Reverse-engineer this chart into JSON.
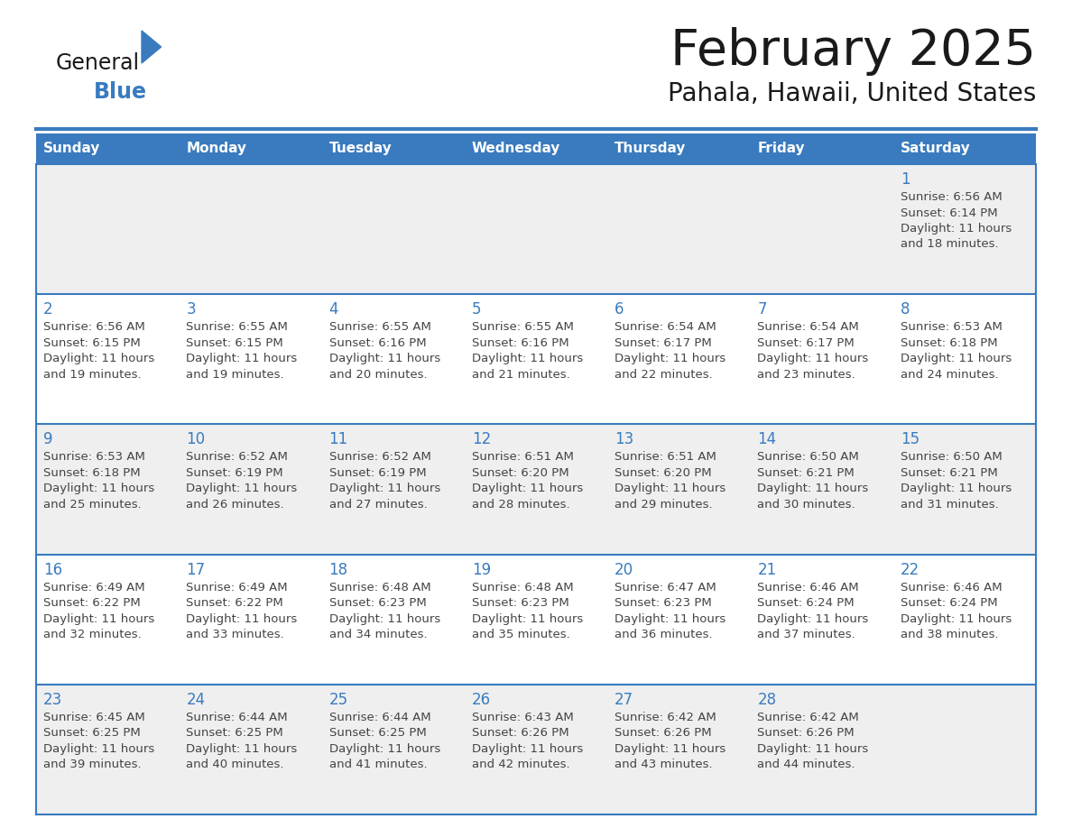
{
  "title": "February 2025",
  "subtitle": "Pahala, Hawaii, United States",
  "header_color": "#3a7bbf",
  "header_text_color": "#ffffff",
  "day_names": [
    "Sunday",
    "Monday",
    "Tuesday",
    "Wednesday",
    "Thursday",
    "Friday",
    "Saturday"
  ],
  "bg_color": "#ffffff",
  "cell_bg_row0": "#efefef",
  "cell_bg_row1": "#ffffff",
  "day_number_color": "#3a7bbf",
  "info_text_color": "#444444",
  "border_color": "#3a7bbf",
  "calendar": [
    [
      null,
      null,
      null,
      null,
      null,
      null,
      1
    ],
    [
      2,
      3,
      4,
      5,
      6,
      7,
      8
    ],
    [
      9,
      10,
      11,
      12,
      13,
      14,
      15
    ],
    [
      16,
      17,
      18,
      19,
      20,
      21,
      22
    ],
    [
      23,
      24,
      25,
      26,
      27,
      28,
      null
    ]
  ],
  "sunrise": {
    "1": "6:56 AM",
    "2": "6:56 AM",
    "3": "6:55 AM",
    "4": "6:55 AM",
    "5": "6:55 AM",
    "6": "6:54 AM",
    "7": "6:54 AM",
    "8": "6:53 AM",
    "9": "6:53 AM",
    "10": "6:52 AM",
    "11": "6:52 AM",
    "12": "6:51 AM",
    "13": "6:51 AM",
    "14": "6:50 AM",
    "15": "6:50 AM",
    "16": "6:49 AM",
    "17": "6:49 AM",
    "18": "6:48 AM",
    "19": "6:48 AM",
    "20": "6:47 AM",
    "21": "6:46 AM",
    "22": "6:46 AM",
    "23": "6:45 AM",
    "24": "6:44 AM",
    "25": "6:44 AM",
    "26": "6:43 AM",
    "27": "6:42 AM",
    "28": "6:42 AM"
  },
  "sunset": {
    "1": "6:14 PM",
    "2": "6:15 PM",
    "3": "6:15 PM",
    "4": "6:16 PM",
    "5": "6:16 PM",
    "6": "6:17 PM",
    "7": "6:17 PM",
    "8": "6:18 PM",
    "9": "6:18 PM",
    "10": "6:19 PM",
    "11": "6:19 PM",
    "12": "6:20 PM",
    "13": "6:20 PM",
    "14": "6:21 PM",
    "15": "6:21 PM",
    "16": "6:22 PM",
    "17": "6:22 PM",
    "18": "6:23 PM",
    "19": "6:23 PM",
    "20": "6:23 PM",
    "21": "6:24 PM",
    "22": "6:24 PM",
    "23": "6:25 PM",
    "24": "6:25 PM",
    "25": "6:25 PM",
    "26": "6:26 PM",
    "27": "6:26 PM",
    "28": "6:26 PM"
  },
  "daylight": {
    "1": "11 hours and 18 minutes.",
    "2": "11 hours and 19 minutes.",
    "3": "11 hours and 19 minutes.",
    "4": "11 hours and 20 minutes.",
    "5": "11 hours and 21 minutes.",
    "6": "11 hours and 22 minutes.",
    "7": "11 hours and 23 minutes.",
    "8": "11 hours and 24 minutes.",
    "9": "11 hours and 25 minutes.",
    "10": "11 hours and 26 minutes.",
    "11": "11 hours and 27 minutes.",
    "12": "11 hours and 28 minutes.",
    "13": "11 hours and 29 minutes.",
    "14": "11 hours and 30 minutes.",
    "15": "11 hours and 31 minutes.",
    "16": "11 hours and 32 minutes.",
    "17": "11 hours and 33 minutes.",
    "18": "11 hours and 34 minutes.",
    "19": "11 hours and 35 minutes.",
    "20": "11 hours and 36 minutes.",
    "21": "11 hours and 37 minutes.",
    "22": "11 hours and 38 minutes.",
    "23": "11 hours and 39 minutes.",
    "24": "11 hours and 40 minutes.",
    "25": "11 hours and 41 minutes.",
    "26": "11 hours and 42 minutes.",
    "27": "11 hours and 43 minutes.",
    "28": "11 hours and 44 minutes."
  }
}
